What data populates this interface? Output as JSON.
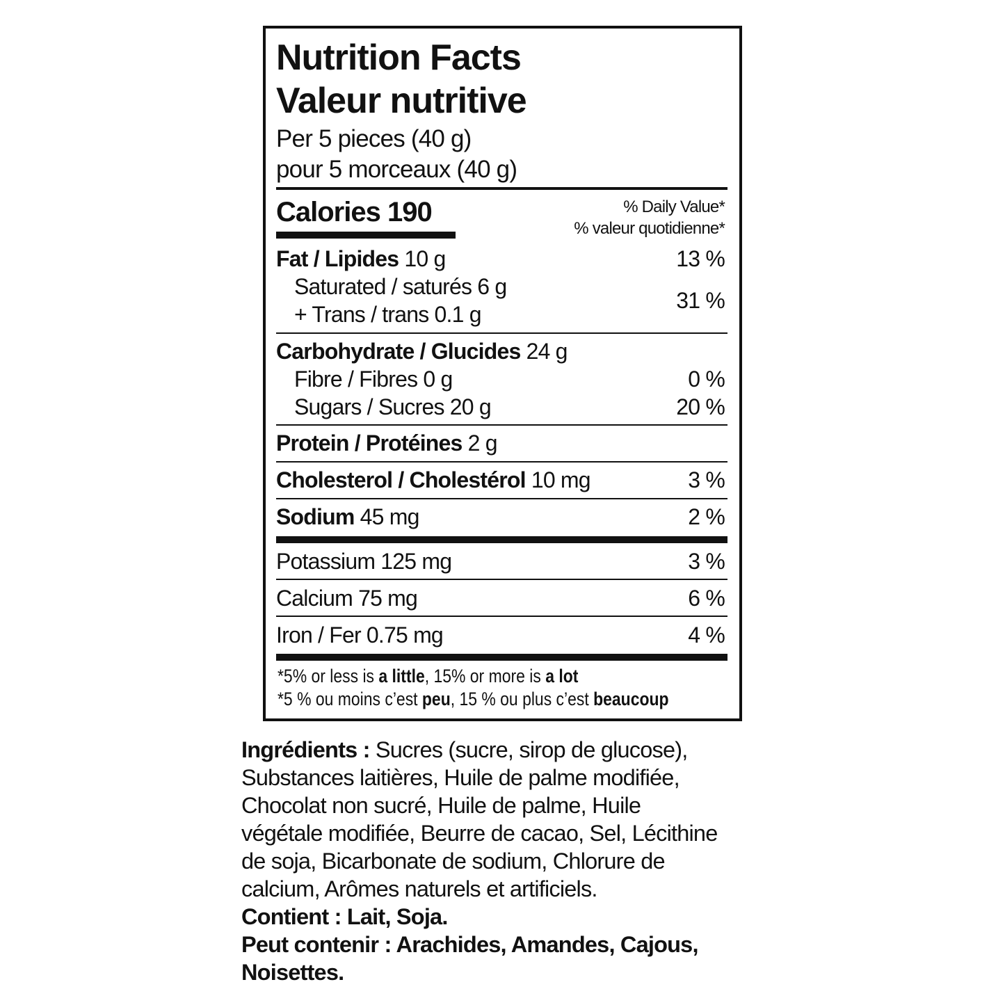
{
  "label": {
    "title_en": "Nutrition Facts",
    "title_fr": "Valeur nutritive",
    "serving_en": "Per 5 pieces (40 g)",
    "serving_fr": "pour 5 morceaux (40 g)",
    "calories_label": "Calories 190",
    "dv_header_en": "% Daily Value*",
    "dv_header_fr": "% valeur quotidienne*",
    "rows": {
      "fat": {
        "name": "Fat / Lipides",
        "amount": "10 g",
        "dv": "13 %"
      },
      "saturated": {
        "name": "Saturated / saturés 6 g"
      },
      "trans": {
        "name": "+ Trans / trans 0.1 g"
      },
      "sat_trans_dv": "31 %",
      "carb": {
        "name": "Carbohydrate / Glucides",
        "amount": "24 g"
      },
      "fibre": {
        "name": "Fibre / Fibres 0 g",
        "dv": "0 %"
      },
      "sugars": {
        "name": "Sugars / Sucres 20 g",
        "dv": "20 %"
      },
      "protein": {
        "name": "Protein / Protéines",
        "amount": "2 g"
      },
      "cholesterol": {
        "name": "Cholesterol / Cholestérol",
        "amount": "10 mg",
        "dv": "3 %"
      },
      "sodium": {
        "name": "Sodium",
        "amount": "45 mg",
        "dv": "2 %"
      },
      "potassium": {
        "name": "Potassium 125 mg",
        "dv": "3 %"
      },
      "calcium": {
        "name": "Calcium 75 mg",
        "dv": "6 %"
      },
      "iron": {
        "name": "Iron / Fer 0.75 mg",
        "dv": "4 %"
      }
    },
    "footnote_en": [
      "*5% or less is ",
      "a little",
      ", 15% or more is ",
      "a lot"
    ],
    "footnote_fr": [
      "*5 % ou moins c’est ",
      "peu",
      ", 15 % ou plus c’est ",
      "beaucoup"
    ]
  },
  "ingredients": {
    "label": "Ingrédients :",
    "lines": [
      " Sucres (sucre, sirop de glucose),",
      "Substances laitières, Huile de palme modifiée,",
      "Chocolat non sucré, Huile de palme, Huile",
      "végétale modifiée, Beurre de cacao, Sel, Lécithine",
      "de soja, Bicarbonate de sodium, Chlorure de",
      "calcium, Arômes naturels et artificiels."
    ],
    "contains": "Contient : Lait, Soja.",
    "may_contain_1": "Peut contenir : Arachides, Amandes, Cajous,",
    "may_contain_2": "Noisettes."
  }
}
